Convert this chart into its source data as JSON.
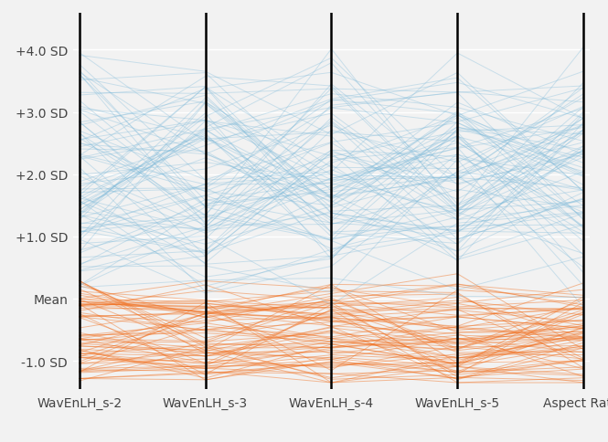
{
  "axes_labels": [
    "WavEnLH_s-2",
    "WavEnLH_s-3",
    "WavEnLH_s-4",
    "WavEnLH_s-5",
    "Aspect Ratio"
  ],
  "y_ticks": [
    -1.0,
    0.0,
    1.0,
    2.0,
    3.0,
    4.0
  ],
  "y_tick_labels": [
    "-1.0 SD",
    "Mean",
    "+1.0 SD",
    "+2.0 SD",
    "+3.0 SD",
    "+4.0 SD"
  ],
  "ylim": [
    -1.45,
    4.6
  ],
  "blue_color": "#7ab8d9",
  "orange_color": "#f07020",
  "blue_alpha": 0.35,
  "orange_alpha": 0.45,
  "line_width": 0.7,
  "background_color": "#f2f2f2",
  "plot_bg_color": "#f2f2f2",
  "n_blue": 90,
  "n_orange": 75,
  "random_seed": 7
}
